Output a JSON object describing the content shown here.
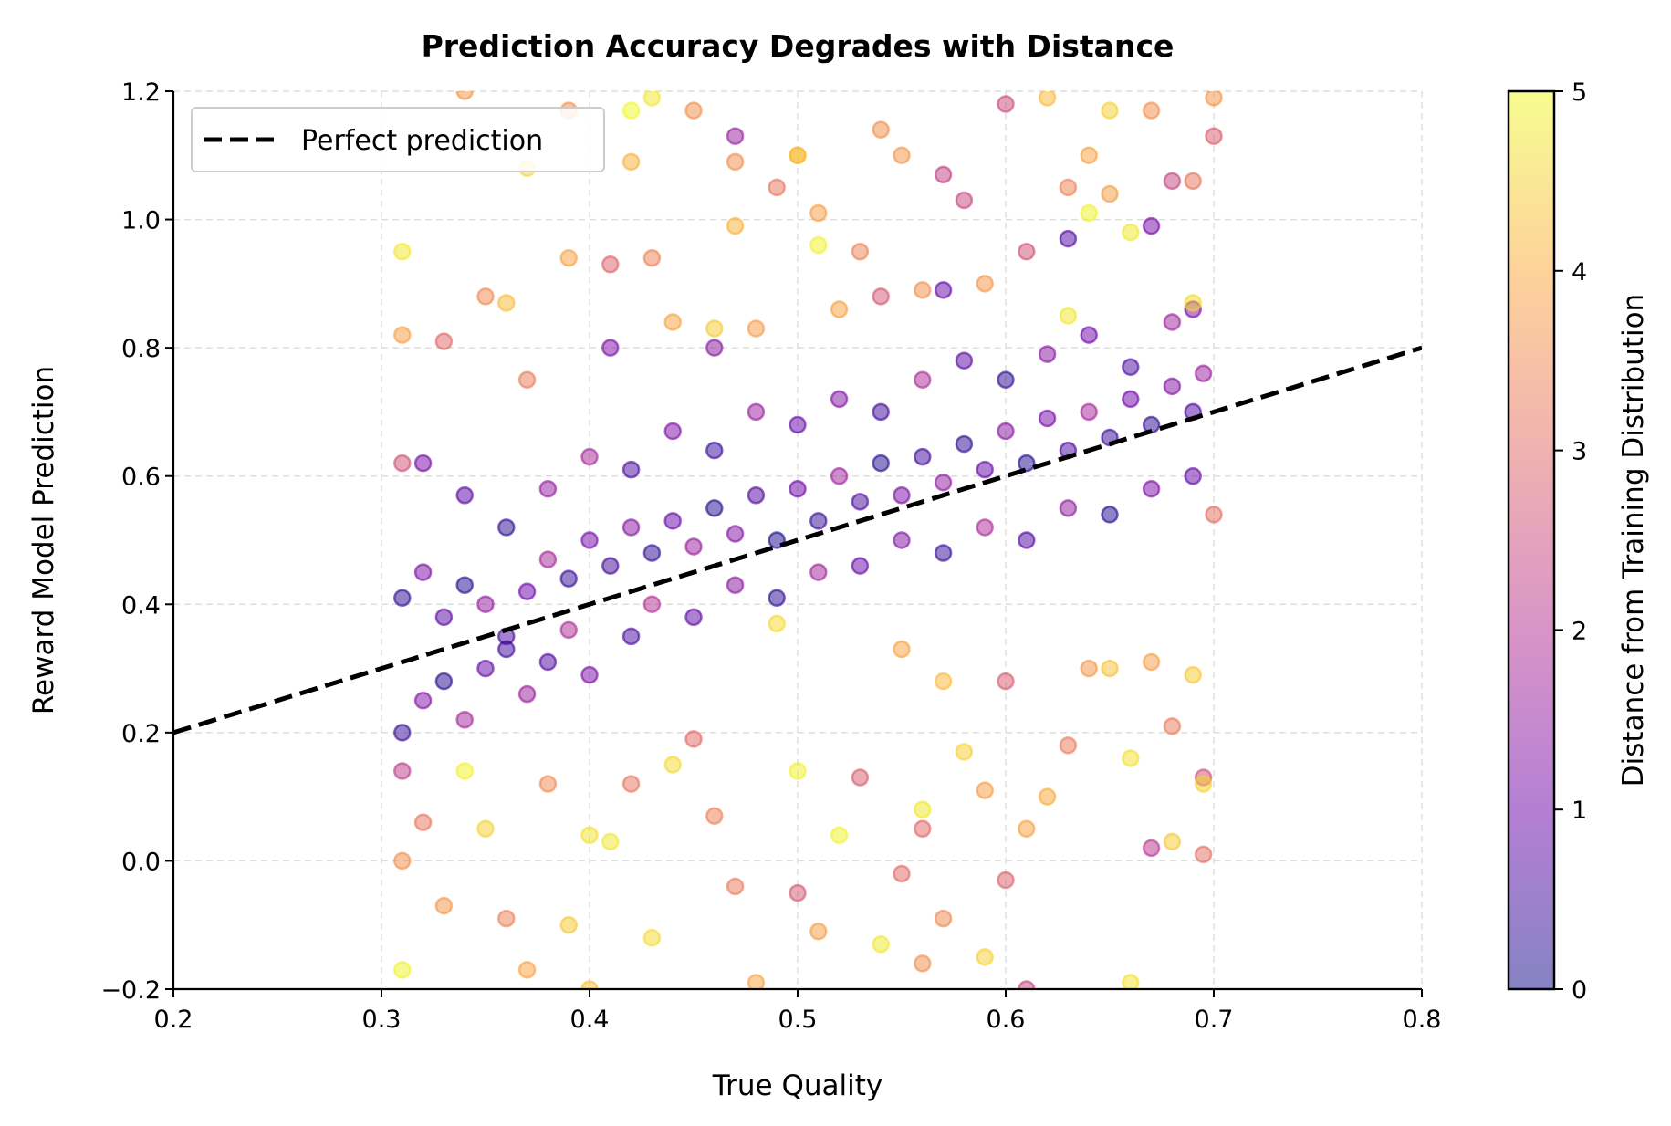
{
  "chart_data": {
    "type": "scatter",
    "title": "Prediction Accuracy Degrades with Distance",
    "xlabel": "True Quality",
    "ylabel": "Reward Model Prediction",
    "xlim": [
      0.2,
      0.8
    ],
    "ylim": [
      -0.2,
      1.2
    ],
    "xticks": [
      "0.2",
      "0.3",
      "0.4",
      "0.5",
      "0.6",
      "0.7",
      "0.8"
    ],
    "xtick_values": [
      0.2,
      0.3,
      0.4,
      0.5,
      0.6,
      0.7,
      0.8
    ],
    "yticks": [
      "−0.2",
      "0.0",
      "0.2",
      "0.4",
      "0.6",
      "0.8",
      "1.0",
      "1.2"
    ],
    "ytick_values": [
      -0.2,
      0.0,
      0.2,
      0.4,
      0.6,
      0.8,
      1.0,
      1.2
    ],
    "grid": true,
    "legend": {
      "placement": "top-left",
      "entries": [
        "Perfect prediction"
      ]
    },
    "reference_line": {
      "name": "Perfect prediction",
      "x": [
        0.2,
        0.8
      ],
      "y": [
        0.2,
        0.8
      ],
      "style": "dashed",
      "color": "#000000"
    },
    "colorbar": {
      "label": "Distance from Training Distribution",
      "range": [
        0,
        5
      ],
      "ticks": [
        "0",
        "1",
        "2",
        "3",
        "4",
        "5"
      ],
      "tick_values": [
        0,
        1,
        2,
        3,
        4,
        5
      ],
      "colormap": "plasma",
      "alpha": 0.5
    },
    "colormap_stops": [
      "#0d0887",
      "#6a00a8",
      "#b12a90",
      "#e16462",
      "#fca636",
      "#f0f921"
    ],
    "points_format": [
      "true_quality",
      "prediction",
      "distance"
    ],
    "points": [
      [
        0.31,
        0.41,
        0.3
      ],
      [
        0.32,
        0.45,
        1.2
      ],
      [
        0.33,
        0.38,
        0.8
      ],
      [
        0.34,
        0.43,
        0.2
      ],
      [
        0.35,
        0.4,
        1.5
      ],
      [
        0.36,
        0.35,
        0.6
      ],
      [
        0.37,
        0.42,
        1.0
      ],
      [
        0.38,
        0.47,
        1.8
      ],
      [
        0.39,
        0.44,
        0.4
      ],
      [
        0.4,
        0.5,
        1.1
      ],
      [
        0.41,
        0.46,
        0.5
      ],
      [
        0.42,
        0.52,
        1.4
      ],
      [
        0.43,
        0.48,
        0.3
      ],
      [
        0.44,
        0.53,
        0.9
      ],
      [
        0.45,
        0.49,
        1.6
      ],
      [
        0.46,
        0.55,
        0.2
      ],
      [
        0.47,
        0.51,
        1.3
      ],
      [
        0.48,
        0.57,
        0.7
      ],
      [
        0.49,
        0.5,
        0.1
      ],
      [
        0.5,
        0.58,
        1.0
      ],
      [
        0.51,
        0.53,
        0.4
      ],
      [
        0.52,
        0.6,
        1.7
      ],
      [
        0.53,
        0.56,
        0.6
      ],
      [
        0.54,
        0.62,
        0.2
      ],
      [
        0.55,
        0.57,
        1.2
      ],
      [
        0.56,
        0.63,
        0.5
      ],
      [
        0.57,
        0.59,
        1.5
      ],
      [
        0.58,
        0.65,
        0.3
      ],
      [
        0.59,
        0.61,
        0.9
      ],
      [
        0.6,
        0.67,
        1.4
      ],
      [
        0.61,
        0.62,
        0.2
      ],
      [
        0.62,
        0.69,
        1.1
      ],
      [
        0.63,
        0.64,
        0.6
      ],
      [
        0.64,
        0.7,
        1.8
      ],
      [
        0.65,
        0.66,
        0.4
      ],
      [
        0.66,
        0.72,
        1.0
      ],
      [
        0.67,
        0.68,
        0.3
      ],
      [
        0.68,
        0.74,
        1.3
      ],
      [
        0.69,
        0.7,
        0.7
      ],
      [
        0.695,
        0.76,
        1.6
      ],
      [
        0.31,
        0.2,
        0.4
      ],
      [
        0.32,
        0.25,
        1.3
      ],
      [
        0.33,
        0.28,
        0.2
      ],
      [
        0.34,
        0.22,
        1.8
      ],
      [
        0.35,
        0.3,
        0.9
      ],
      [
        0.36,
        0.33,
        0.5
      ],
      [
        0.37,
        0.26,
        1.6
      ],
      [
        0.38,
        0.31,
        0.7
      ],
      [
        0.39,
        0.36,
        1.9
      ],
      [
        0.4,
        0.29,
        1.2
      ],
      [
        0.42,
        0.35,
        0.6
      ],
      [
        0.43,
        0.4,
        2.0
      ],
      [
        0.45,
        0.38,
        0.8
      ],
      [
        0.47,
        0.43,
        1.4
      ],
      [
        0.49,
        0.41,
        0.3
      ],
      [
        0.51,
        0.45,
        1.7
      ],
      [
        0.53,
        0.46,
        0.9
      ],
      [
        0.55,
        0.5,
        1.3
      ],
      [
        0.57,
        0.48,
        0.4
      ],
      [
        0.59,
        0.52,
        1.9
      ],
      [
        0.61,
        0.5,
        0.7
      ],
      [
        0.63,
        0.55,
        1.5
      ],
      [
        0.65,
        0.54,
        0.2
      ],
      [
        0.67,
        0.58,
        1.2
      ],
      [
        0.69,
        0.6,
        0.9
      ],
      [
        0.32,
        0.62,
        1.1
      ],
      [
        0.34,
        0.57,
        0.8
      ],
      [
        0.36,
        0.52,
        0.3
      ],
      [
        0.38,
        0.58,
        1.5
      ],
      [
        0.4,
        0.63,
        1.8
      ],
      [
        0.42,
        0.61,
        0.6
      ],
      [
        0.44,
        0.67,
        1.2
      ],
      [
        0.46,
        0.64,
        0.4
      ],
      [
        0.48,
        0.7,
        1.6
      ],
      [
        0.5,
        0.68,
        0.9
      ],
      [
        0.52,
        0.72,
        1.3
      ],
      [
        0.54,
        0.7,
        0.5
      ],
      [
        0.56,
        0.75,
        1.9
      ],
      [
        0.58,
        0.78,
        0.8
      ],
      [
        0.6,
        0.75,
        0.3
      ],
      [
        0.62,
        0.79,
        1.4
      ],
      [
        0.64,
        0.82,
        1.0
      ],
      [
        0.66,
        0.77,
        0.6
      ],
      [
        0.68,
        0.84,
        1.7
      ],
      [
        0.69,
        0.86,
        1.2
      ],
      [
        0.63,
        0.97,
        0.7
      ],
      [
        0.67,
        0.99,
        1.1
      ],
      [
        0.57,
        0.89,
        0.9
      ],
      [
        0.46,
        0.8,
        1.4
      ],
      [
        0.41,
        0.8,
        1.2
      ],
      [
        0.31,
        0.82,
        3.8
      ],
      [
        0.31,
        0.95,
        4.8
      ],
      [
        0.31,
        0.62,
        2.6
      ],
      [
        0.31,
        0.14,
        2.2
      ],
      [
        0.31,
        0.0,
        3.6
      ],
      [
        0.31,
        -0.17,
        4.9
      ],
      [
        0.32,
        0.06,
        3.2
      ],
      [
        0.33,
        0.81,
        3.0
      ],
      [
        0.33,
        -0.07,
        3.7
      ],
      [
        0.34,
        1.2,
        3.7
      ],
      [
        0.35,
        0.88,
        3.5
      ],
      [
        0.36,
        0.87,
        4.2
      ],
      [
        0.35,
        0.05,
        4.5
      ],
      [
        0.36,
        -0.09,
        3.4
      ],
      [
        0.37,
        0.75,
        3.3
      ],
      [
        0.37,
        1.08,
        4.6
      ],
      [
        0.37,
        -0.17,
        3.9
      ],
      [
        0.38,
        0.12,
        3.5
      ],
      [
        0.39,
        -0.1,
        4.4
      ],
      [
        0.39,
        1.17,
        3.6
      ],
      [
        0.39,
        0.94,
        3.9
      ],
      [
        0.4,
        0.04,
        4.7
      ],
      [
        0.4,
        -0.2,
        4.3
      ],
      [
        0.41,
        0.93,
        2.9
      ],
      [
        0.41,
        0.03,
        4.8
      ],
      [
        0.42,
        1.09,
        4.1
      ],
      [
        0.42,
        0.12,
        3.2
      ],
      [
        0.43,
        0.94,
        3.4
      ],
      [
        0.43,
        -0.12,
        4.6
      ],
      [
        0.44,
        0.84,
        3.9
      ],
      [
        0.44,
        0.15,
        4.6
      ],
      [
        0.45,
        0.19,
        3.0
      ],
      [
        0.45,
        1.17,
        3.6
      ],
      [
        0.46,
        0.83,
        4.4
      ],
      [
        0.46,
        0.07,
        3.4
      ],
      [
        0.47,
        1.13,
        1.6
      ],
      [
        0.47,
        0.99,
        4.1
      ],
      [
        0.47,
        -0.04,
        3.3
      ],
      [
        0.48,
        0.83,
        3.8
      ],
      [
        0.48,
        -0.19,
        3.9
      ],
      [
        0.49,
        1.05,
        3.2
      ],
      [
        0.49,
        0.37,
        4.6
      ],
      [
        0.5,
        0.14,
        4.9
      ],
      [
        0.5,
        -0.05,
        2.7
      ],
      [
        0.5,
        1.1,
        4.4
      ],
      [
        0.51,
        0.96,
        4.9
      ],
      [
        0.51,
        1.01,
        3.8
      ],
      [
        0.51,
        -0.11,
        3.8
      ],
      [
        0.52,
        0.86,
        3.9
      ],
      [
        0.52,
        0.04,
        4.9
      ],
      [
        0.53,
        0.95,
        3.4
      ],
      [
        0.53,
        0.13,
        2.8
      ],
      [
        0.54,
        1.14,
        3.6
      ],
      [
        0.54,
        0.88,
        2.7
      ],
      [
        0.54,
        -0.13,
        4.8
      ],
      [
        0.55,
        1.1,
        3.7
      ],
      [
        0.55,
        0.33,
        3.9
      ],
      [
        0.55,
        -0.02,
        3.0
      ],
      [
        0.56,
        0.89,
        3.6
      ],
      [
        0.56,
        0.08,
        4.8
      ],
      [
        0.56,
        -0.16,
        3.6
      ],
      [
        0.57,
        1.07,
        2.3
      ],
      [
        0.57,
        0.28,
        4.2
      ],
      [
        0.57,
        -0.09,
        3.5
      ],
      [
        0.58,
        1.03,
        2.4
      ],
      [
        0.58,
        0.17,
        4.5
      ],
      [
        0.59,
        0.9,
        3.7
      ],
      [
        0.59,
        0.11,
        3.8
      ],
      [
        0.59,
        -0.15,
        4.5
      ],
      [
        0.6,
        1.18,
        2.5
      ],
      [
        0.6,
        0.28,
        2.8
      ],
      [
        0.6,
        -0.03,
        2.9
      ],
      [
        0.61,
        0.95,
        2.6
      ],
      [
        0.61,
        0.05,
        3.9
      ],
      [
        0.61,
        -0.2,
        2.4
      ],
      [
        0.62,
        1.19,
        4.2
      ],
      [
        0.62,
        0.1,
        4.0
      ],
      [
        0.63,
        1.05,
        3.4
      ],
      [
        0.63,
        0.85,
        4.8
      ],
      [
        0.63,
        0.18,
        3.3
      ],
      [
        0.64,
        1.1,
        3.9
      ],
      [
        0.64,
        1.01,
        4.9
      ],
      [
        0.64,
        0.3,
        3.7
      ],
      [
        0.65,
        1.17,
        4.5
      ],
      [
        0.65,
        1.04,
        3.8
      ],
      [
        0.65,
        0.3,
        4.3
      ],
      [
        0.66,
        0.98,
        4.8
      ],
      [
        0.66,
        0.16,
        4.7
      ],
      [
        0.66,
        -0.19,
        4.7
      ],
      [
        0.67,
        1.17,
        3.6
      ],
      [
        0.67,
        0.02,
        2.1
      ],
      [
        0.67,
        0.31,
        3.8
      ],
      [
        0.68,
        1.06,
        2.4
      ],
      [
        0.68,
        0.21,
        3.3
      ],
      [
        0.68,
        0.03,
        4.4
      ],
      [
        0.69,
        1.06,
        3.2
      ],
      [
        0.69,
        0.87,
        4.6
      ],
      [
        0.69,
        0.29,
        4.4
      ],
      [
        0.695,
        0.13,
        2.6
      ],
      [
        0.695,
        0.01,
        3.1
      ],
      [
        0.7,
        1.19,
        3.7
      ],
      [
        0.7,
        1.13,
        2.8
      ],
      [
        0.7,
        0.54,
        3.1
      ],
      [
        0.695,
        0.12,
        4.5
      ],
      [
        0.5,
        1.1,
        4.2
      ],
      [
        0.43,
        1.19,
        4.8
      ],
      [
        0.42,
        1.17,
        5.0
      ],
      [
        0.47,
        1.09,
        3.6
      ],
      [
        0.34,
        0.14,
        4.9
      ],
      [
        0.56,
        0.05,
        3.0
      ]
    ]
  }
}
